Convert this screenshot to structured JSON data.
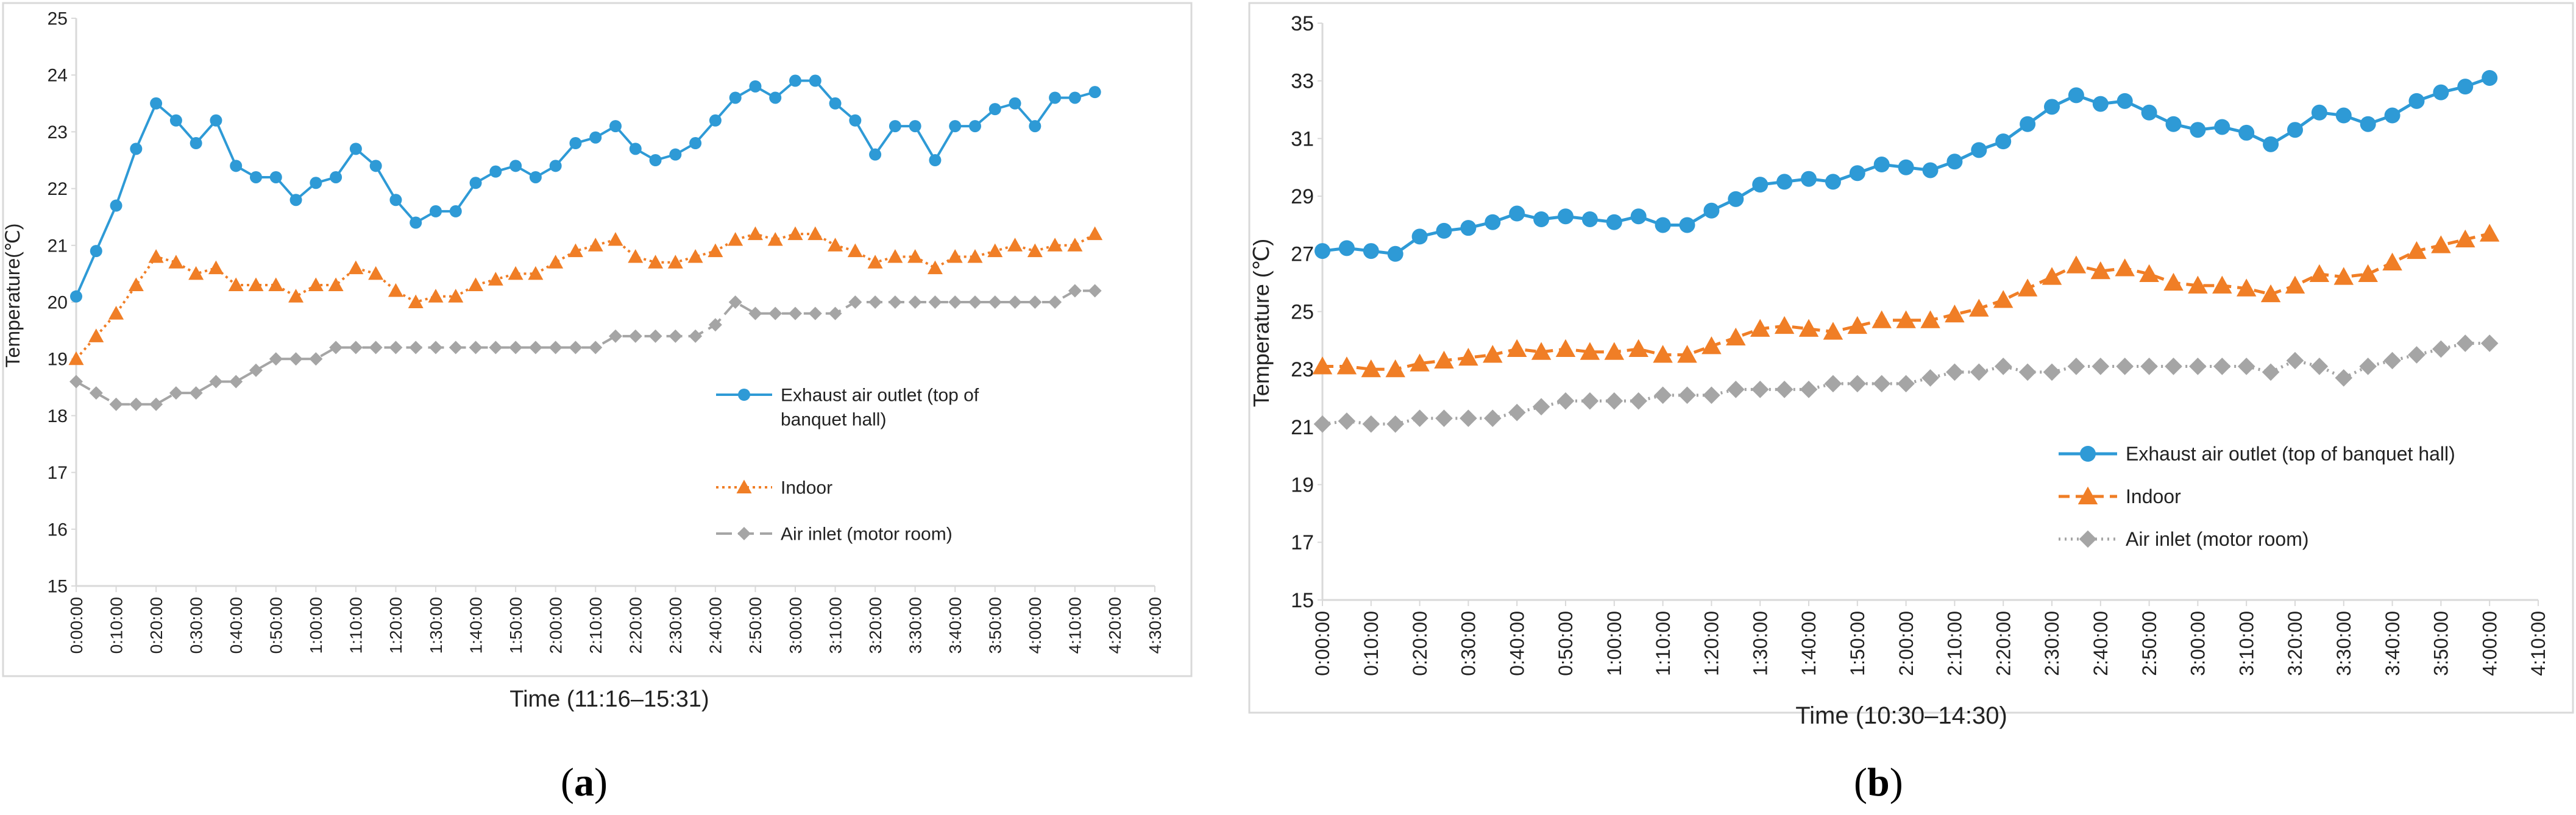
{
  "charts": {
    "colors": {
      "exhaust": "#2E9AD6",
      "indoor": "#F07E26",
      "inlet": "#A5A5A5",
      "axis": "#d9d9d9",
      "text": "#222222"
    },
    "chart_data": [
      {
        "type": "line",
        "panel_label": "a",
        "title": "",
        "xlabel": "Time (11:16–15:31)",
        "ylabel": "Temperature(℃)",
        "ylim": [
          15,
          25
        ],
        "ytick_step": 1,
        "yticks": [
          "15",
          "16",
          "17",
          "18",
          "19",
          "20",
          "21",
          "22",
          "23",
          "24",
          "25"
        ],
        "xlim": [
          0,
          270
        ],
        "x_interval_min": 5,
        "xticks": [
          "0:00:00",
          "0:10:00",
          "0:20:00",
          "0:30:00",
          "0:40:00",
          "0:50:00",
          "1:00:00",
          "1:10:00",
          "1:20:00",
          "1:30:00",
          "1:40:00",
          "1:50:00",
          "2:00:00",
          "2:10:00",
          "2:20:00",
          "2:30:00",
          "2:40:00",
          "2:50:00",
          "3:00:00",
          "3:10:00",
          "3:20:00",
          "3:30:00",
          "3:40:00",
          "3:50:00",
          "4:00:00",
          "4:10:00",
          "4:20:00",
          "4:30:00"
        ],
        "grid": false,
        "legend_position": "center-right",
        "series": [
          {
            "name": "Exhaust air outlet (top of banquet hall)",
            "legend_lines": [
              "Exhaust air outlet (top of",
              "banquet hall)"
            ],
            "color_key": "exhaust",
            "marker": "circle",
            "dash": "",
            "values": [
              20.1,
              20.9,
              21.7,
              22.7,
              23.5,
              23.2,
              22.8,
              23.2,
              22.4,
              22.2,
              22.2,
              21.8,
              22.1,
              22.2,
              22.7,
              22.4,
              21.8,
              21.4,
              21.6,
              21.6,
              22.1,
              22.3,
              22.4,
              22.2,
              22.4,
              22.8,
              22.9,
              23.1,
              22.7,
              22.5,
              22.6,
              22.8,
              23.2,
              23.6,
              23.8,
              23.6,
              23.9,
              23.9,
              23.5,
              23.2,
              22.6,
              23.1,
              23.1,
              22.5,
              23.1,
              23.1,
              23.4,
              23.5,
              23.1,
              23.6,
              23.6,
              23.7
            ]
          },
          {
            "name": "Indoor",
            "legend_lines": [
              "Indoor"
            ],
            "color_key": "indoor",
            "marker": "triangle",
            "dash": "4 6",
            "values": [
              19.0,
              19.4,
              19.8,
              20.3,
              20.8,
              20.7,
              20.5,
              20.6,
              20.3,
              20.3,
              20.3,
              20.1,
              20.3,
              20.3,
              20.6,
              20.5,
              20.2,
              20.0,
              20.1,
              20.1,
              20.3,
              20.4,
              20.5,
              20.5,
              20.7,
              20.9,
              21.0,
              21.1,
              20.8,
              20.7,
              20.7,
              20.8,
              20.9,
              21.1,
              21.2,
              21.1,
              21.2,
              21.2,
              21.0,
              20.9,
              20.7,
              20.8,
              20.8,
              20.6,
              20.8,
              20.8,
              20.9,
              21.0,
              20.9,
              21.0,
              21.0,
              21.2
            ]
          },
          {
            "name": "Air inlet (motor room)",
            "legend_lines": [
              "Air inlet (motor room)"
            ],
            "color_key": "inlet",
            "marker": "diamond",
            "dash": "26 10",
            "values": [
              18.6,
              18.4,
              18.2,
              18.2,
              18.2,
              18.4,
              18.4,
              18.6,
              18.6,
              18.8,
              19.0,
              19.0,
              19.0,
              19.2,
              19.2,
              19.2,
              19.2,
              19.2,
              19.2,
              19.2,
              19.2,
              19.2,
              19.2,
              19.2,
              19.2,
              19.2,
              19.2,
              19.4,
              19.4,
              19.4,
              19.4,
              19.4,
              19.6,
              20.0,
              19.8,
              19.8,
              19.8,
              19.8,
              19.8,
              20.0,
              20.0,
              20.0,
              20.0,
              20.0,
              20.0,
              20.0,
              20.0,
              20.0,
              20.0,
              20.0,
              20.2,
              20.2
            ]
          }
        ]
      },
      {
        "type": "line",
        "panel_label": "b",
        "title": "",
        "xlabel": "Time (10:30–14:30)",
        "ylabel": "Temperature (℃)",
        "ylim": [
          15,
          35
        ],
        "ytick_step": 2,
        "yticks": [
          "15",
          "17",
          "19",
          "21",
          "23",
          "25",
          "27",
          "29",
          "31",
          "33",
          "35"
        ],
        "xlim": [
          0,
          250
        ],
        "x_interval_min": 5,
        "xticks": [
          "0:00:00",
          "0:10:00",
          "0:20:00",
          "0:30:00",
          "0:40:00",
          "0:50:00",
          "1:00:00",
          "1:10:00",
          "1:20:00",
          "1:30:00",
          "1:40:00",
          "1:50:00",
          "2:00:00",
          "2:10:00",
          "2:20:00",
          "2:30:00",
          "2:40:00",
          "2:50:00",
          "3:00:00",
          "3:10:00",
          "3:20:00",
          "3:30:00",
          "3:40:00",
          "3:50:00",
          "4:00:00",
          "4:10:00"
        ],
        "grid": false,
        "legend_position": "bottom-right",
        "series": [
          {
            "name": "Exhaust air outlet (top of banquet hall)",
            "legend_lines": [
              "Exhaust air outlet (top of banquet hall)"
            ],
            "color_key": "exhaust",
            "marker": "circle",
            "dash": "",
            "values": [
              27.1,
              27.2,
              27.1,
              27.0,
              27.6,
              27.8,
              27.9,
              28.1,
              28.4,
              28.2,
              28.3,
              28.2,
              28.1,
              28.3,
              28.0,
              28.0,
              28.5,
              28.9,
              29.4,
              29.5,
              29.6,
              29.5,
              29.8,
              30.1,
              30.0,
              29.9,
              30.2,
              30.6,
              30.9,
              31.5,
              32.1,
              32.5,
              32.2,
              32.3,
              31.9,
              31.5,
              31.3,
              31.4,
              31.2,
              30.8,
              31.3,
              31.9,
              31.8,
              31.5,
              31.8,
              32.3,
              32.6,
              32.8,
              33.1
            ]
          },
          {
            "name": "Indoor",
            "legend_lines": [
              "Indoor"
            ],
            "color_key": "indoor",
            "marker": "triangle",
            "dash": "18 10",
            "values": [
              23.1,
              23.1,
              23.0,
              23.0,
              23.2,
              23.3,
              23.4,
              23.5,
              23.7,
              23.6,
              23.7,
              23.6,
              23.6,
              23.7,
              23.5,
              23.5,
              23.8,
              24.1,
              24.4,
              24.5,
              24.4,
              24.3,
              24.5,
              24.7,
              24.7,
              24.7,
              24.9,
              25.1,
              25.4,
              25.8,
              26.2,
              26.6,
              26.4,
              26.5,
              26.3,
              26.0,
              25.9,
              25.9,
              25.8,
              25.6,
              25.9,
              26.3,
              26.2,
              26.3,
              26.7,
              27.1,
              27.3,
              27.5,
              27.7
            ]
          },
          {
            "name": "Air inlet (motor room)",
            "legend_lines": [
              "Air inlet (motor room)"
            ],
            "color_key": "inlet",
            "marker": "diamond",
            "dash": "3 7",
            "values": [
              21.1,
              21.2,
              21.1,
              21.1,
              21.3,
              21.3,
              21.3,
              21.3,
              21.5,
              21.7,
              21.9,
              21.9,
              21.9,
              21.9,
              22.1,
              22.1,
              22.1,
              22.3,
              22.3,
              22.3,
              22.3,
              22.5,
              22.5,
              22.5,
              22.5,
              22.7,
              22.9,
              22.9,
              23.1,
              22.9,
              22.9,
              23.1,
              23.1,
              23.1,
              23.1,
              23.1,
              23.1,
              23.1,
              23.1,
              22.9,
              23.3,
              23.1,
              22.7,
              23.1,
              23.3,
              23.5,
              23.7,
              23.9,
              23.9
            ]
          }
        ]
      }
    ]
  }
}
